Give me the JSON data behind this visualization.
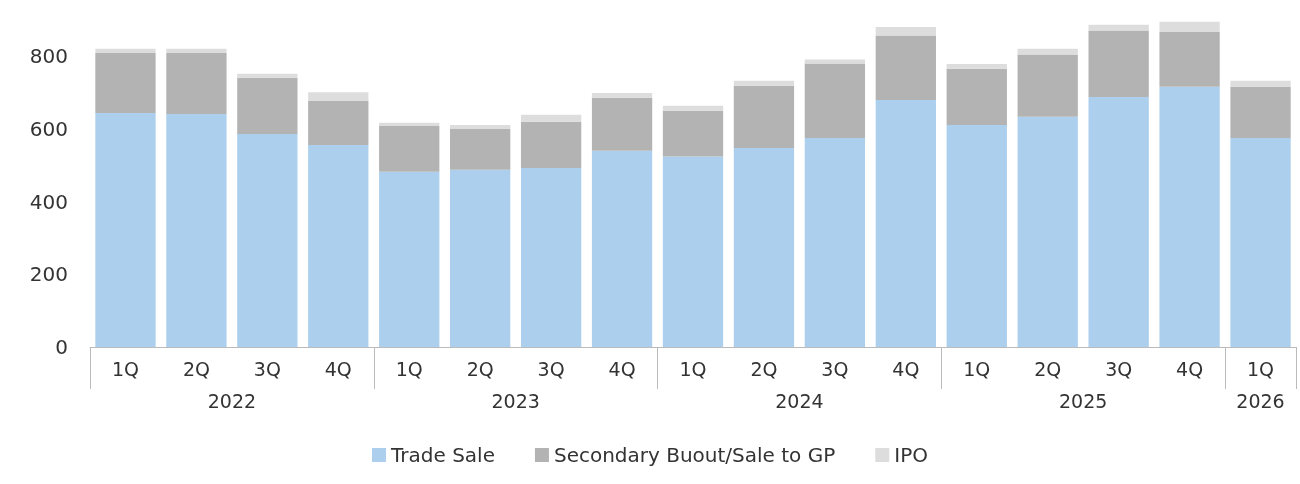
{
  "chart_data": {
    "type": "bar",
    "stacked": true,
    "categories": [
      "1Q",
      "2Q",
      "3Q",
      "4Q",
      "1Q",
      "2Q",
      "3Q",
      "4Q",
      "1Q",
      "2Q",
      "3Q",
      "4Q",
      "1Q",
      "2Q",
      "3Q",
      "4Q",
      "1Q"
    ],
    "annotations": [
      "2022",
      "2023",
      "2024",
      "2025",
      "2026"
    ],
    "series": [
      {
        "name": "Trade Sale",
        "color": "#abcfed",
        "values": [
          644,
          641,
          586,
          556,
          482,
          488,
          493,
          540,
          524,
          548,
          575,
          680,
          611,
          634,
          688,
          716,
          575
        ]
      },
      {
        "name": "Secondary Buout/Sale to GP",
        "color": "#b2b3b2",
        "values": [
          165,
          168,
          155,
          121,
          126,
          112,
          127,
          146,
          126,
          171,
          205,
          177,
          155,
          171,
          183,
          151,
          141
        ]
      },
      {
        "name": "IPO",
        "color": "#dcdddc",
        "values": [
          12,
          12,
          11,
          24,
          9,
          11,
          19,
          13,
          14,
          14,
          11,
          24,
          13,
          16,
          16,
          28,
          17
        ]
      }
    ],
    "ylim": [
      0,
      900
    ],
    "yticks": [
      0,
      200,
      400,
      600,
      800
    ],
    "grid": false,
    "legend": "bottom"
  }
}
